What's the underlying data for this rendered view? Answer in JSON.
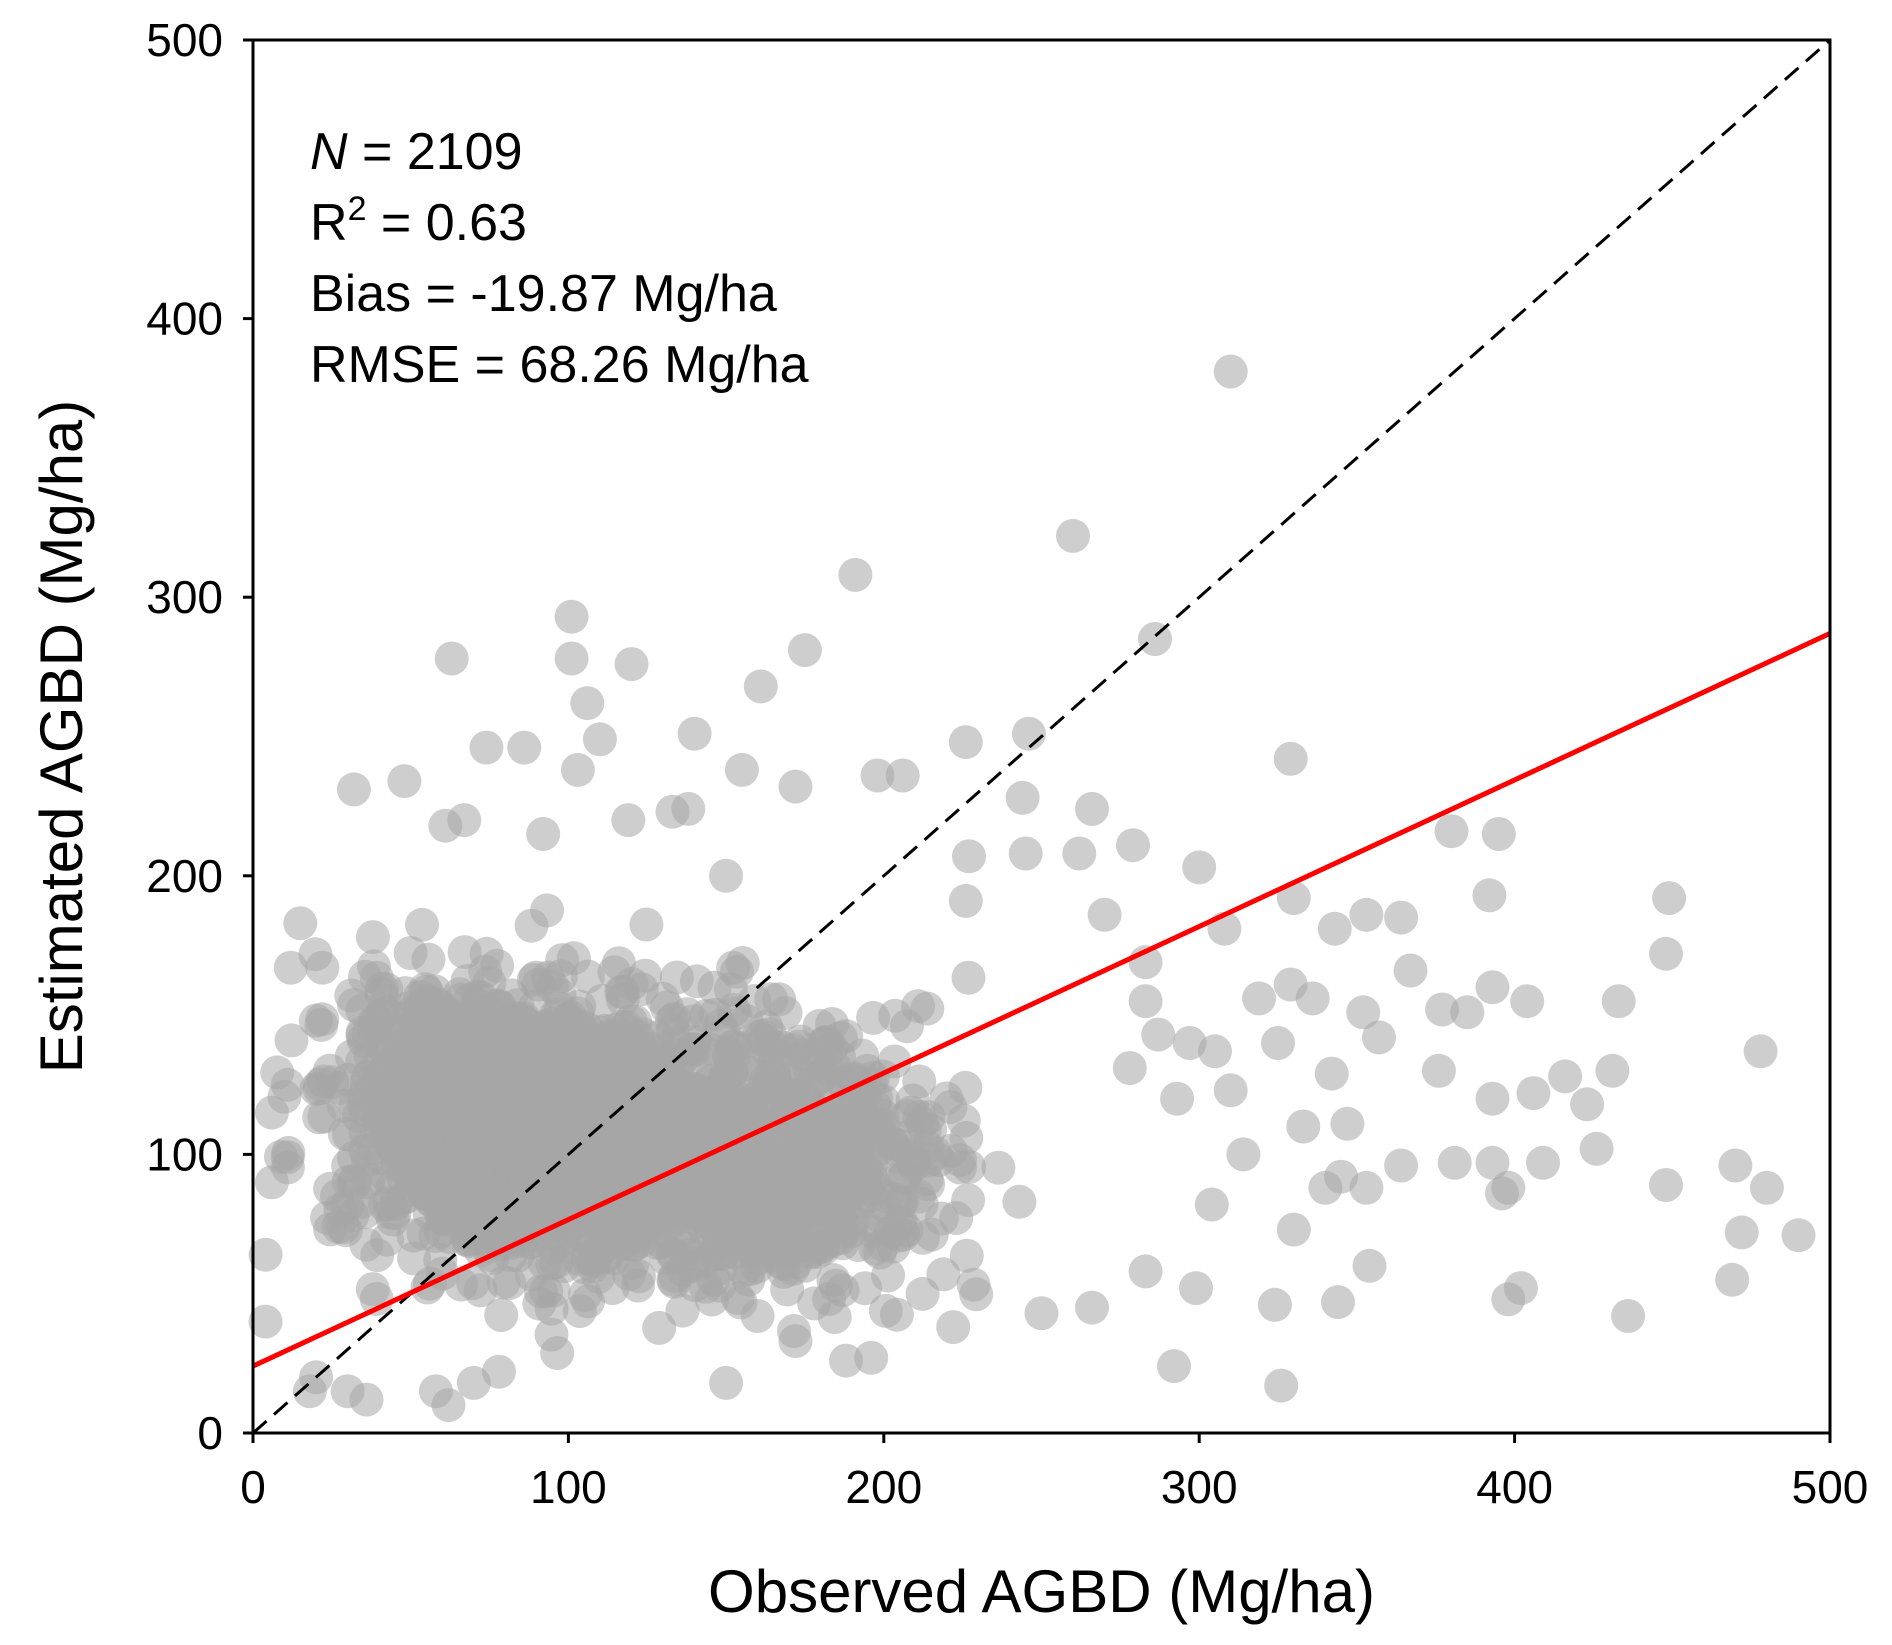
{
  "chart_data": {
    "type": "scatter",
    "title": "",
    "xlabel": "Observed AGBD (Mg/ha)",
    "ylabel": "Estimated AGBD (Mg/ha)",
    "xlim": [
      0,
      500
    ],
    "ylim": [
      0,
      500
    ],
    "xticks": [
      0,
      100,
      200,
      300,
      400,
      500
    ],
    "yticks": [
      0,
      100,
      200,
      300,
      400,
      500
    ],
    "grid": false,
    "legend": "none",
    "annotations": {
      "n_label": "N",
      "n_value": " = 2109",
      "r2_label": "R",
      "r2_sup": "2",
      "r2_value": " = 0.63",
      "bias": "Bias = -19.87 Mg/ha",
      "rmse": "RMSE = 68.26 Mg/ha"
    },
    "reference_line": {
      "style": "dashed",
      "color": "#000000",
      "from": [
        0,
        0
      ],
      "to": [
        500,
        500
      ]
    },
    "fit_line": {
      "color": "#ff0000",
      "intercept": 24,
      "slope": 0.526
    },
    "point_color": "#a6a6a6",
    "point_opacity": 0.55,
    "n_points": 2109,
    "series": [
      {
        "points": [
          [
            310,
            381
          ],
          [
            260,
            322
          ],
          [
            191,
            308
          ],
          [
            101,
            293
          ],
          [
            63,
            278
          ],
          [
            101,
            278
          ],
          [
            120,
            276
          ],
          [
            175,
            281
          ],
          [
            286,
            285
          ],
          [
            161,
            268
          ],
          [
            106,
            262
          ],
          [
            110,
            249
          ],
          [
            140,
            251
          ],
          [
            246,
            251
          ],
          [
            226,
            248
          ],
          [
            74,
            246
          ],
          [
            86,
            246
          ],
          [
            32,
            231
          ],
          [
            48,
            234
          ],
          [
            103,
            238
          ],
          [
            155,
            238
          ],
          [
            172,
            232
          ],
          [
            198,
            236
          ],
          [
            206,
            236
          ],
          [
            329,
            242
          ],
          [
            133,
            223
          ],
          [
            262,
            208
          ],
          [
            266,
            224
          ],
          [
            279,
            211
          ],
          [
            300,
            203
          ],
          [
            244,
            228
          ],
          [
            245,
            208
          ],
          [
            61,
            218
          ],
          [
            67,
            220
          ],
          [
            92,
            215
          ],
          [
            119,
            220
          ],
          [
            138,
            224
          ],
          [
            150,
            200
          ],
          [
            227,
            207
          ],
          [
            226,
            191
          ],
          [
            38,
            178
          ],
          [
            15,
            183
          ],
          [
            12,
            167
          ],
          [
            22,
            167
          ],
          [
            270,
            186
          ],
          [
            330,
            192
          ],
          [
            364,
            185
          ],
          [
            380,
            216
          ],
          [
            395,
            215
          ],
          [
            392,
            193
          ],
          [
            449,
            192
          ],
          [
            448,
            172
          ],
          [
            343,
            181
          ],
          [
            353,
            186
          ],
          [
            308,
            181
          ],
          [
            297,
            140
          ],
          [
            367,
            166
          ],
          [
            329,
            161
          ],
          [
            319,
            156
          ],
          [
            336,
            156
          ],
          [
            305,
            137
          ],
          [
            283,
            155
          ],
          [
            287,
            143
          ],
          [
            283,
            169
          ],
          [
            377,
            152
          ],
          [
            385,
            151
          ],
          [
            393,
            160
          ],
          [
            404,
            155
          ],
          [
            433,
            155
          ],
          [
            352,
            151
          ],
          [
            357,
            142
          ],
          [
            325,
            140
          ],
          [
            342,
            129
          ],
          [
            376,
            130
          ],
          [
            416,
            128
          ],
          [
            431,
            130
          ],
          [
            393,
            120
          ],
          [
            406,
            122
          ],
          [
            423,
            118
          ],
          [
            478,
            137
          ],
          [
            364,
            96
          ],
          [
            381,
            97
          ],
          [
            393,
            97
          ],
          [
            409,
            97
          ],
          [
            426,
            102
          ],
          [
            470,
            96
          ],
          [
            333,
            110
          ],
          [
            347,
            111
          ],
          [
            345,
            92
          ],
          [
            353,
            88
          ],
          [
            340,
            88
          ],
          [
            396,
            86
          ],
          [
            398,
            88
          ],
          [
            448,
            89
          ],
          [
            480,
            88
          ],
          [
            472,
            72
          ],
          [
            490,
            71
          ],
          [
            469,
            55
          ],
          [
            398,
            48
          ],
          [
            402,
            52
          ],
          [
            436,
            42
          ],
          [
            344,
            47
          ],
          [
            354,
            60
          ],
          [
            324,
            46
          ],
          [
            326,
            17
          ],
          [
            292,
            24
          ],
          [
            299,
            52
          ],
          [
            304,
            82
          ],
          [
            330,
            73
          ],
          [
            266,
            45
          ],
          [
            250,
            43
          ],
          [
            222,
            38
          ],
          [
            243,
            83
          ],
          [
            283,
            58
          ],
          [
            310,
            123
          ],
          [
            314,
            100
          ],
          [
            293,
            120
          ],
          [
            278,
            131
          ],
          [
            150,
            18
          ],
          [
            172,
            33
          ],
          [
            188,
            26
          ],
          [
            196,
            27
          ],
          [
            160,
            42
          ],
          [
            175,
            60
          ],
          [
            4,
            40
          ],
          [
            4,
            64
          ],
          [
            6,
            90
          ],
          [
            6,
            115
          ],
          [
            11,
            125
          ],
          [
            18,
            15
          ],
          [
            20,
            20
          ],
          [
            30,
            15
          ],
          [
            36,
            12
          ],
          [
            58,
            15
          ],
          [
            62,
            10
          ],
          [
            70,
            18
          ],
          [
            78,
            22
          ]
        ]
      }
    ]
  }
}
